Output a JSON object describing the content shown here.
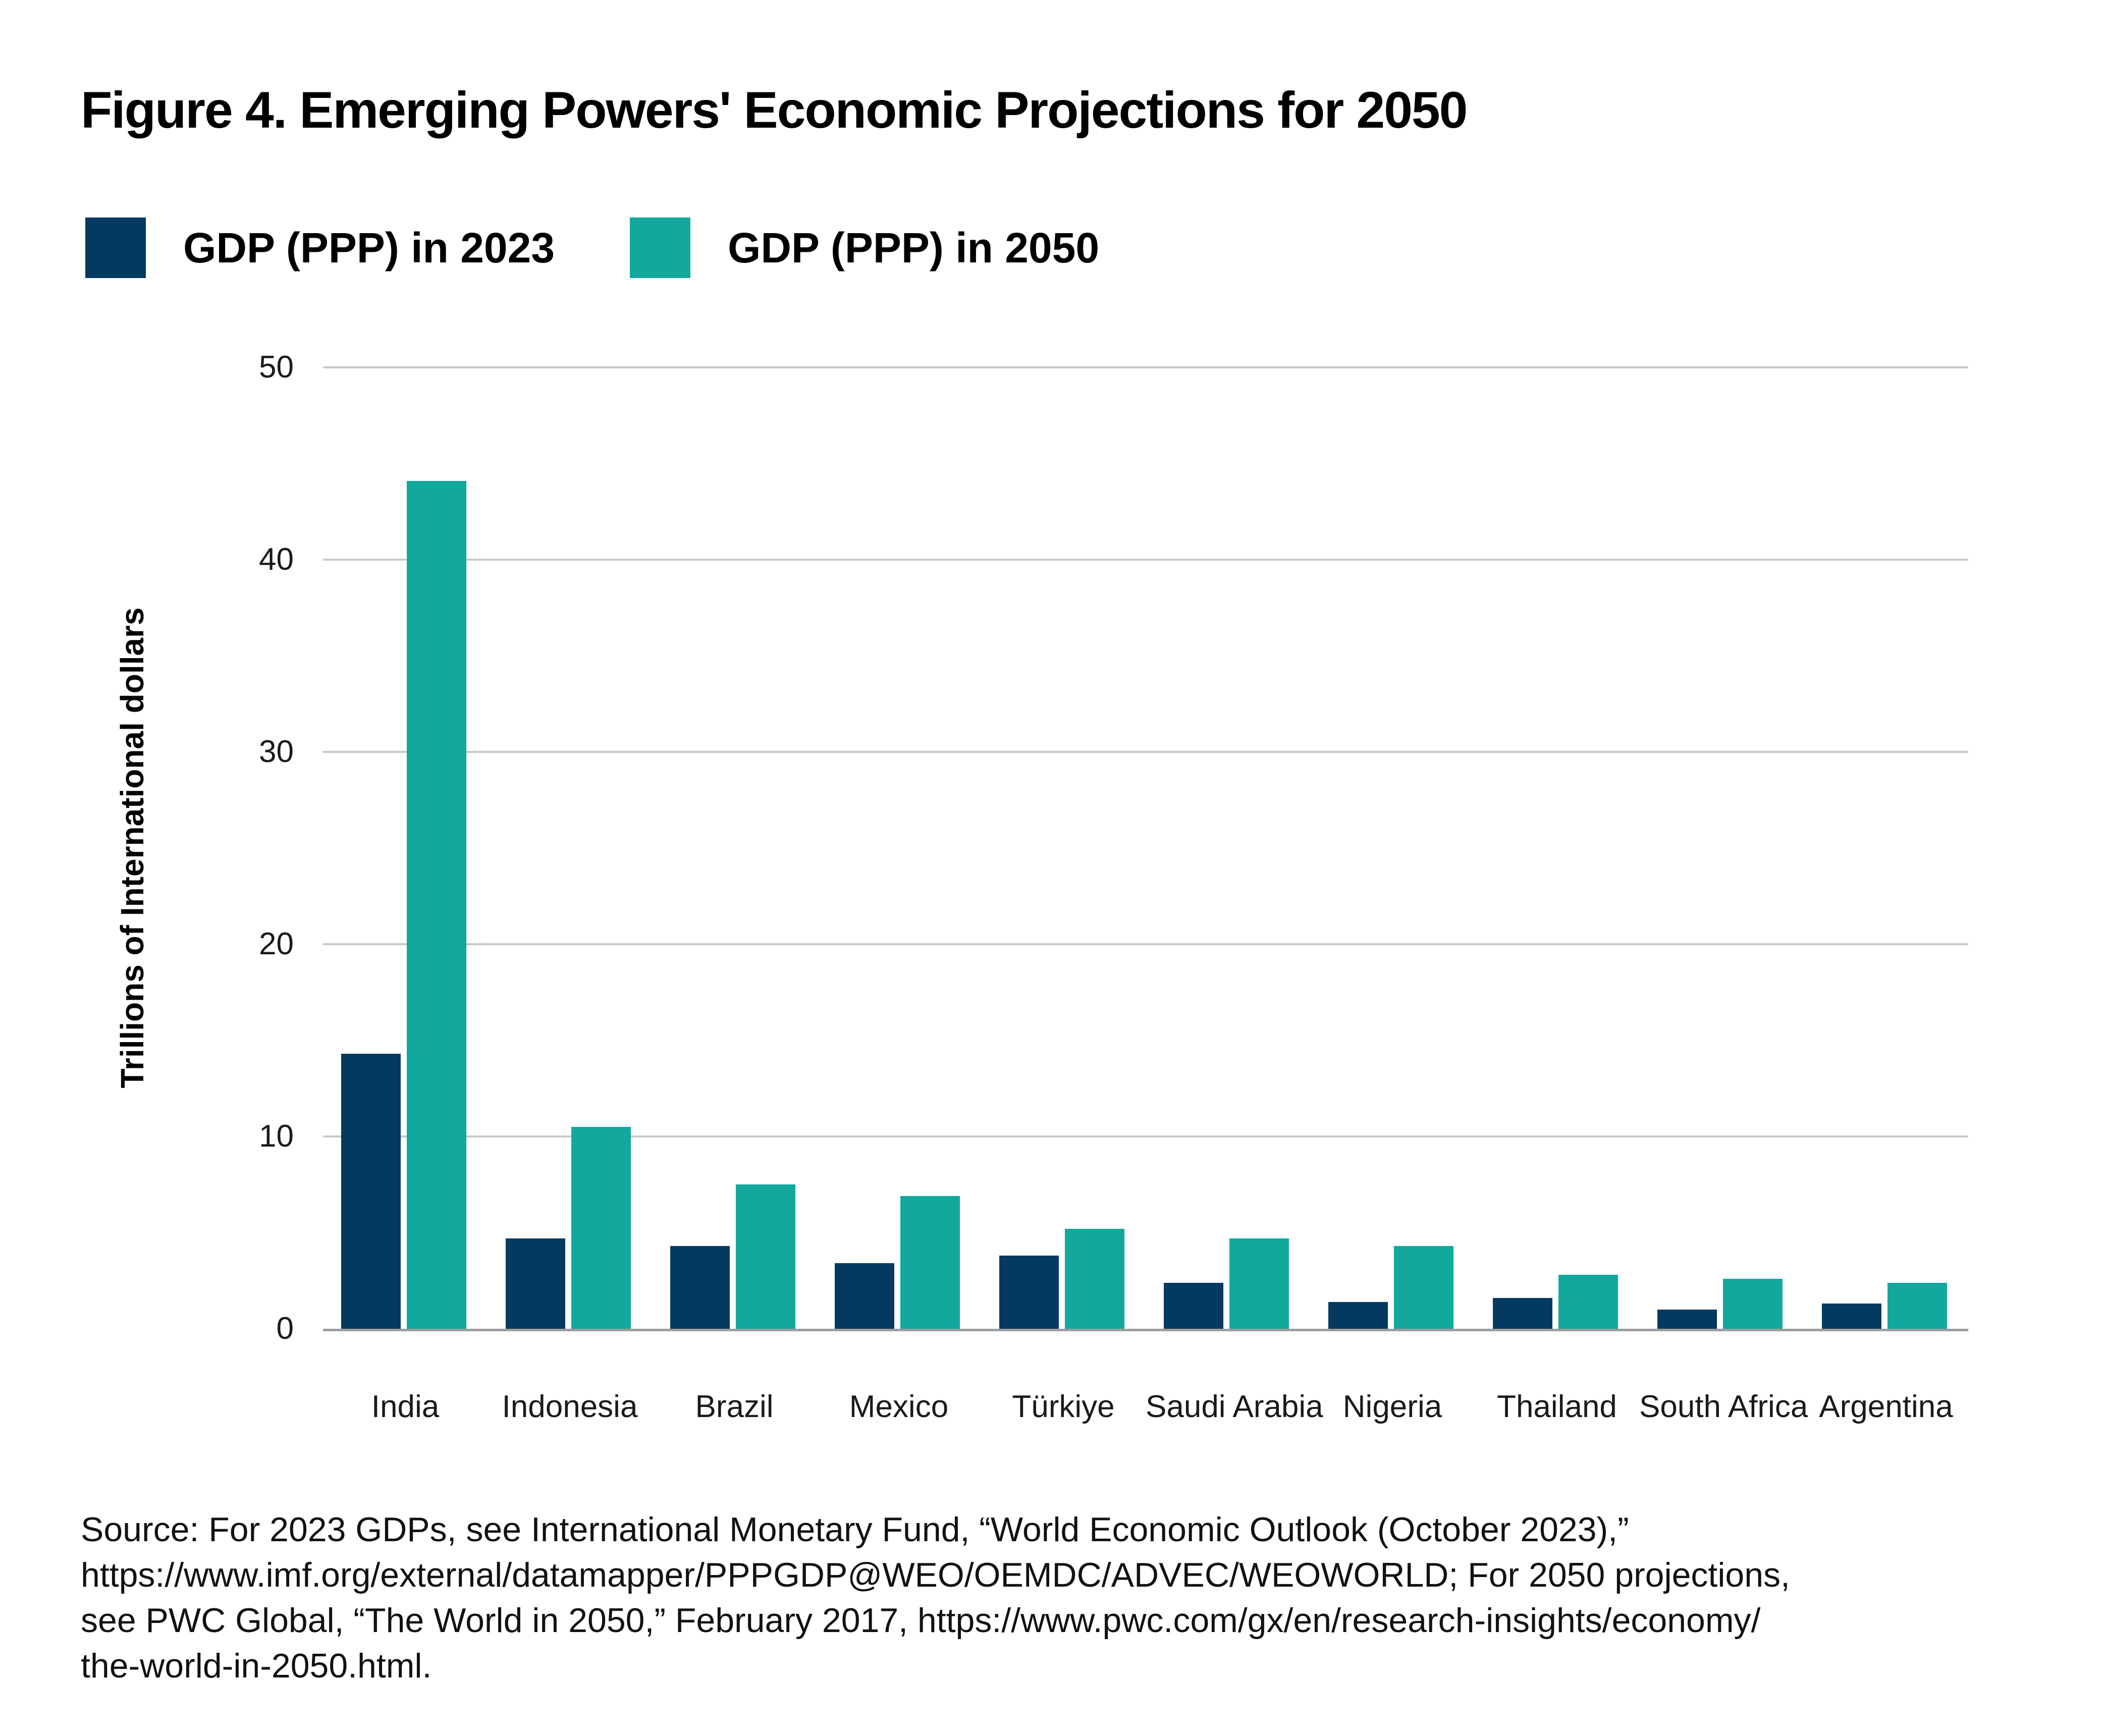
{
  "chart_data": {
    "type": "bar",
    "title": "Figure 4. Emerging Powers' Economic Projections for 2050",
    "categories": [
      "India",
      "Indonesia",
      "Brazil",
      "Mexico",
      "Türkiye",
      "Saudi Arabia",
      "Nigeria",
      "Thailand",
      "South Africa",
      "Argentina"
    ],
    "series": [
      {
        "name": "GDP (PPP) in 2023",
        "color": "#053A60",
        "values": [
          14.3,
          4.7,
          4.3,
          3.4,
          3.8,
          2.4,
          1.4,
          1.6,
          1.0,
          1.3
        ]
      },
      {
        "name": "GDP (PPP) in 2050",
        "color": "#12A89E",
        "values": [
          44.1,
          10.5,
          7.5,
          6.9,
          5.2,
          4.7,
          4.3,
          2.8,
          2.6,
          2.4
        ]
      }
    ],
    "xlabel": "",
    "ylabel": "Trillions of International dollars",
    "yticks": [
      0,
      10,
      20,
      30,
      40,
      50
    ],
    "ylim": [
      0,
      50
    ],
    "grid": true,
    "legend_position": "top-left",
    "gridline_color": "#C9C9C9",
    "baseline_color": "#9D9D9D"
  },
  "source": {
    "lines": [
      "Source: For 2023 GDPs, see International Monetary Fund, “World Economic Outlook (October 2023),”",
      "https://www.imf.org/external/datamapper/PPPGDP@WEO/OEMDC/ADVEC/WEOWORLD; For 2050 projections,",
      "see PWC Global, “The World in 2050,” February 2017, https://www.pwc.com/gx/en/research-insights/economy/",
      "the-world-in-2050.html."
    ]
  }
}
